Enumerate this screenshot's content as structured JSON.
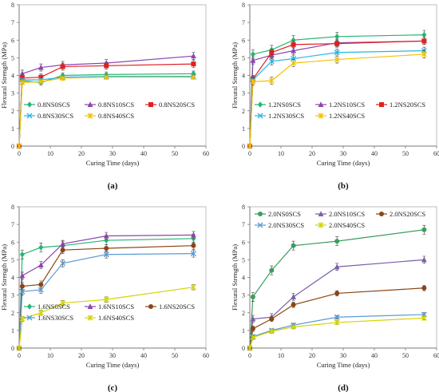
{
  "chart_data": [
    {
      "panel_label": "(a)",
      "type": "line",
      "xlabel": "Curing Time (days)",
      "ylabel": "Flexural Strength (MPa)",
      "xlim": [
        0,
        60
      ],
      "ylim": [
        0,
        8
      ],
      "xticks": [
        0,
        10,
        20,
        30,
        40,
        50,
        60
      ],
      "yticks": [
        0,
        1,
        2,
        3,
        4,
        5,
        6,
        7,
        8
      ],
      "x": [
        0,
        1,
        7,
        14,
        28,
        56
      ],
      "legend_columns": 3,
      "series": [
        {
          "name": "0.8NS0SCS",
          "color": "#22b573",
          "marker": "diamond",
          "values": [
            0,
            3.7,
            3.6,
            4.0,
            4.05,
            4.1
          ],
          "err": 0.15
        },
        {
          "name": "0.8NS10SCS",
          "color": "#8e44ad",
          "marker": "triangle",
          "values": [
            0,
            4.1,
            4.45,
            4.6,
            4.7,
            5.1
          ],
          "err": 0.2
        },
        {
          "name": "0.8NS20SCS",
          "color": "#e02020",
          "marker": "square",
          "values": [
            0,
            3.85,
            3.9,
            4.5,
            4.55,
            4.65
          ],
          "err": 0.2
        },
        {
          "name": "0.8NS30SCS",
          "color": "#29b6e6",
          "marker": "x",
          "values": [
            0,
            3.75,
            3.75,
            3.9,
            3.95,
            3.95
          ],
          "err": 0.1
        },
        {
          "name": "0.8NS40SCS",
          "color": "#f5c200",
          "marker": "star",
          "values": [
            0,
            3.6,
            3.65,
            3.85,
            3.9,
            3.9
          ],
          "err": 0.1
        }
      ]
    },
    {
      "panel_label": "(b)",
      "type": "line",
      "xlabel": "Curing Time (days)",
      "ylabel": "Flexural Strength (MPa)",
      "xlim": [
        0,
        60
      ],
      "ylim": [
        0,
        8
      ],
      "xticks": [
        0,
        10,
        20,
        30,
        40,
        50,
        60
      ],
      "yticks": [
        0,
        1,
        2,
        3,
        4,
        5,
        6,
        7,
        8
      ],
      "x": [
        0,
        1,
        7,
        14,
        28,
        56
      ],
      "legend_columns": 3,
      "series": [
        {
          "name": "1.2NS0SCS",
          "color": "#22b573",
          "marker": "diamond",
          "values": [
            0,
            5.2,
            5.45,
            6.0,
            6.2,
            6.3
          ],
          "err": 0.25
        },
        {
          "name": "1.2NS10SCS",
          "color": "#8e44ad",
          "marker": "triangle",
          "values": [
            0,
            4.85,
            5.15,
            5.4,
            5.85,
            5.95
          ],
          "err": 0.2
        },
        {
          "name": "1.2NS20SCS",
          "color": "#e02020",
          "marker": "square",
          "values": [
            0,
            3.8,
            5.3,
            5.75,
            5.8,
            5.95
          ],
          "err": 0.2
        },
        {
          "name": "1.2NS30SCS",
          "color": "#29b6e6",
          "marker": "x",
          "values": [
            0,
            3.75,
            4.8,
            4.95,
            5.3,
            5.4
          ],
          "err": 0.2
        },
        {
          "name": "1.2NS40SCS",
          "color": "#f5c200",
          "marker": "star",
          "values": [
            0,
            3.65,
            3.7,
            4.7,
            4.9,
            5.2
          ],
          "err": 0.2
        }
      ]
    },
    {
      "panel_label": "(c)",
      "type": "line",
      "xlabel": "Curing Time (days)",
      "ylabel": "Flexural Strength (MPa)",
      "xlim": [
        0,
        60
      ],
      "ylim": [
        0,
        8
      ],
      "xticks": [
        0,
        10,
        20,
        30,
        40,
        50,
        60
      ],
      "yticks": [
        0,
        1,
        2,
        3,
        4,
        5,
        6,
        7,
        8
      ],
      "x": [
        0,
        1,
        7,
        14,
        28,
        56
      ],
      "legend_columns": 3,
      "series": [
        {
          "name": "1.6NS0SCS",
          "color": "#22b573",
          "marker": "diamond",
          "values": [
            0,
            5.3,
            5.7,
            5.8,
            6.1,
            6.2
          ],
          "err": 0.25
        },
        {
          "name": "1.6NS10SCS",
          "color": "#8e44ad",
          "marker": "triangle",
          "values": [
            0,
            4.1,
            4.7,
            5.9,
            6.35,
            6.4
          ],
          "err": 0.2
        },
        {
          "name": "1.6NS20SCS",
          "color": "#8b4513",
          "marker": "circle",
          "values": [
            0,
            3.5,
            3.6,
            5.55,
            5.65,
            5.8
          ],
          "err": 0.2
        },
        {
          "name": "1.6NS30SCS",
          "color": "#5b9bd5",
          "marker": "x",
          "values": [
            0,
            3.2,
            3.3,
            4.8,
            5.3,
            5.35
          ],
          "err": 0.2
        },
        {
          "name": "1.6NS40SCS",
          "color": "#d4d400",
          "marker": "star",
          "values": [
            0,
            1.65,
            2.0,
            2.55,
            2.75,
            3.45
          ],
          "err": 0.15
        }
      ]
    },
    {
      "panel_label": "(d)",
      "type": "line",
      "xlabel": "Curing Time (days)",
      "ylabel": "Flexural Strength (MPa)",
      "xlim": [
        0,
        60
      ],
      "ylim": [
        0,
        8
      ],
      "xticks": [
        0,
        10,
        20,
        30,
        40,
        50,
        60
      ],
      "yticks": [
        0,
        1,
        2,
        3,
        4,
        5,
        6,
        7,
        8
      ],
      "x": [
        0,
        1,
        7,
        14,
        28,
        56
      ],
      "legend_columns": 3,
      "series": [
        {
          "name": "2.0NS0SCS",
          "color": "#3a9d5d",
          "marker": "circle",
          "values": [
            0,
            2.9,
            4.4,
            5.8,
            6.05,
            6.7
          ],
          "err": 0.25
        },
        {
          "name": "2.0NS10SCS",
          "color": "#7b5ea7",
          "marker": "triangle",
          "values": [
            0,
            1.65,
            1.75,
            2.9,
            4.6,
            5.0
          ],
          "err": 0.2
        },
        {
          "name": "2.0NS20SCS",
          "color": "#8b4513",
          "marker": "circle",
          "values": [
            0,
            1.1,
            1.65,
            2.45,
            3.1,
            3.4
          ],
          "err": 0.15
        },
        {
          "name": "2.0NS30SCS",
          "color": "#5b9bd5",
          "marker": "x",
          "values": [
            0,
            0.65,
            1.0,
            1.3,
            1.75,
            1.9
          ],
          "err": 0.1
        },
        {
          "name": "2.0NS40SCS",
          "color": "#d4d400",
          "marker": "star",
          "values": [
            0,
            0.6,
            0.95,
            1.2,
            1.45,
            1.7
          ],
          "err": 0.1
        }
      ]
    }
  ]
}
